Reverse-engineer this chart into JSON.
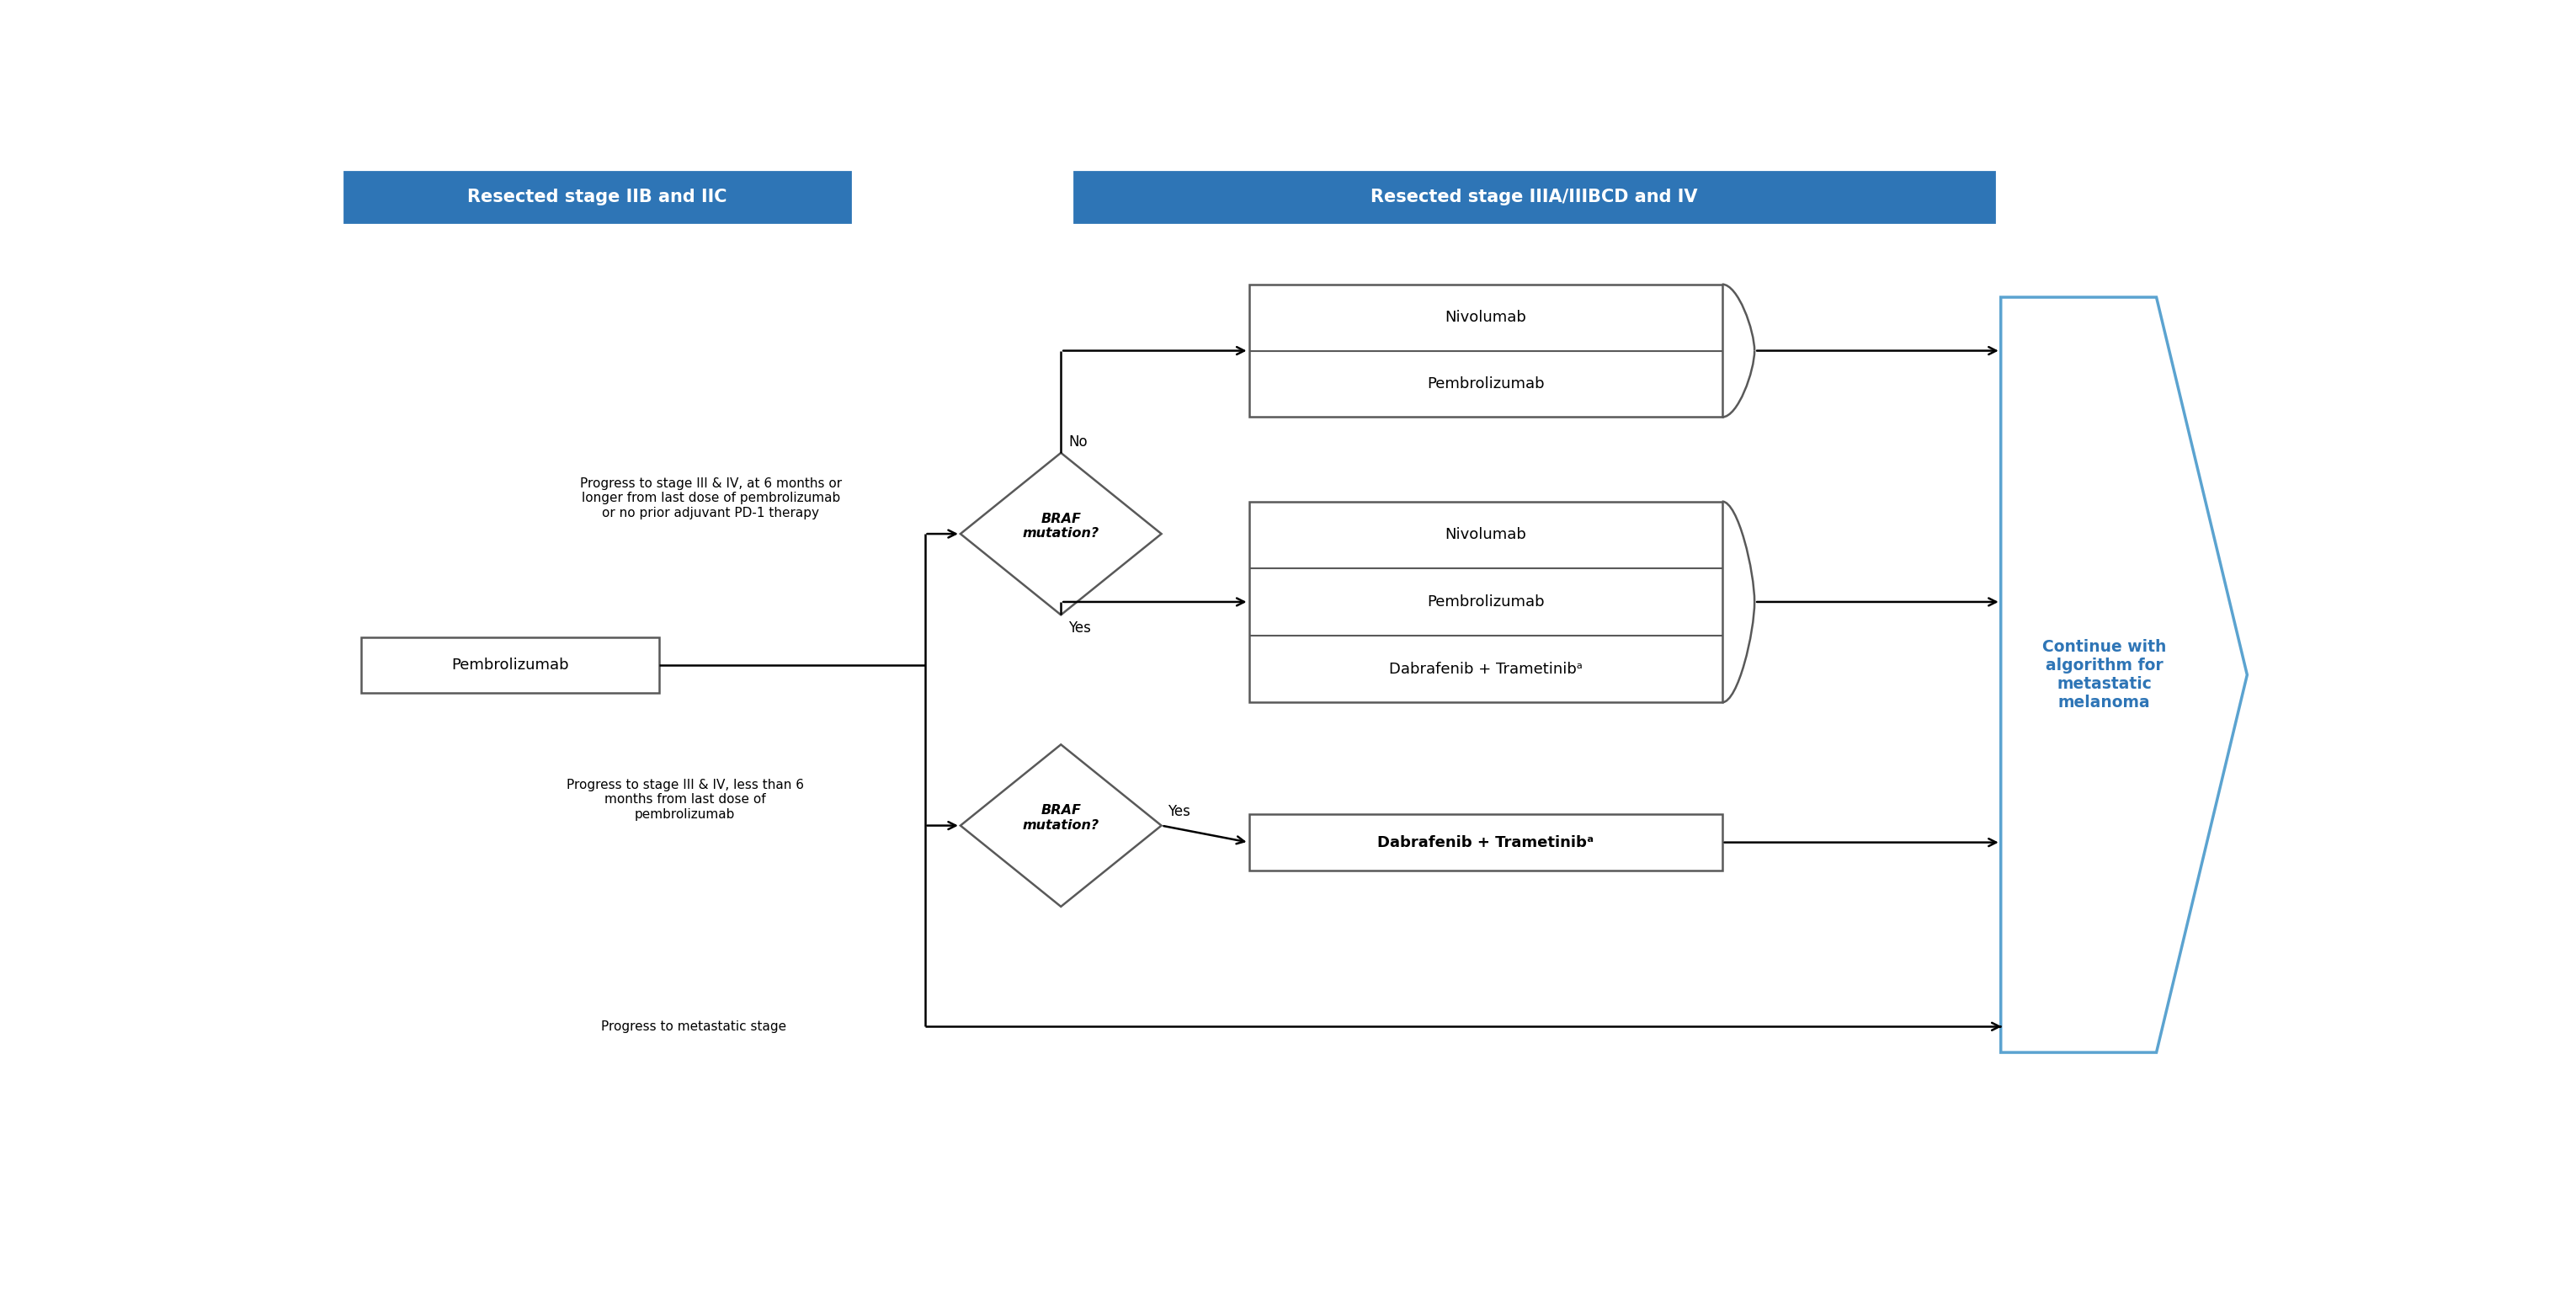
{
  "fig_width": 30.6,
  "fig_height": 15.56,
  "bg_color": "#ffffff",
  "header1_text": "Resected stage IIB and IIC",
  "header2_text": "Resected stage IIIA/IIIBCD and IV",
  "header_bg": "#2E75B6",
  "header_text_color": "#ffffff",
  "pembro_box_text": "Pembrolizumab",
  "braf1_text": "BRAF\nmutation?",
  "braf2_text": "BRAF\nmutation?",
  "box_no_line1": "Nivolumab",
  "box_no_line2": "Pembrolizumab",
  "box_yes_line1": "Nivolumab",
  "box_yes_line2": "Pembrolizumab",
  "box_yes_line3": "Dabrafenib + Trametinibᵃ",
  "box_braf2_yes": "Dabrafenib + Trametinibᵃ",
  "continue_text": "Continue with\nalgorithm for\nmetastatic\nmelanoma",
  "continue_color": "#2E75B6",
  "chevron_edge_color": "#5BA3D0",
  "box_border_color": "#595959",
  "annotation1": "Progress to stage III & IV, at 6 months or\nlonger from last dose of pembrolizumab\nor no prior adjuvant PD-1 therapy",
  "annotation2": "Progress to stage III & IV, less than 6\nmonths from last dose of\npembrolizumab",
  "annotation3": "Progress to metastatic stage",
  "no_label": "No",
  "yes1_label": "Yes",
  "yes2_label": "Yes"
}
